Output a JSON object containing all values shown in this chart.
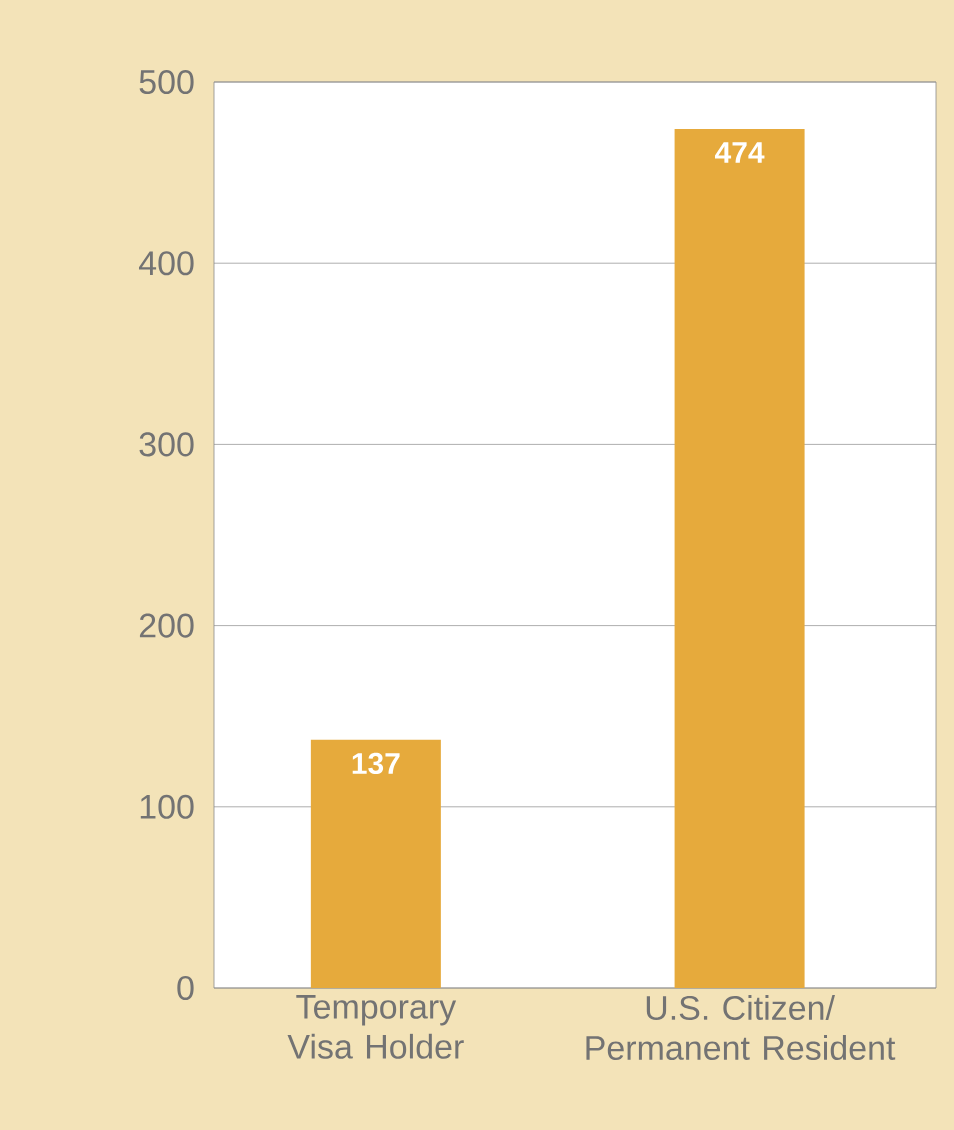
{
  "chart_data": {
    "type": "bar",
    "categories": [
      "Temporary Visa Holder",
      "U.S. Citizen/ Permanent Resident"
    ],
    "values": [
      137,
      474
    ],
    "color": "#e6aa3c",
    "ylim": [
      0,
      500
    ],
    "yticks": [
      0,
      100,
      200,
      300,
      400,
      500
    ],
    "grid": "y",
    "data_labels": true
  }
}
